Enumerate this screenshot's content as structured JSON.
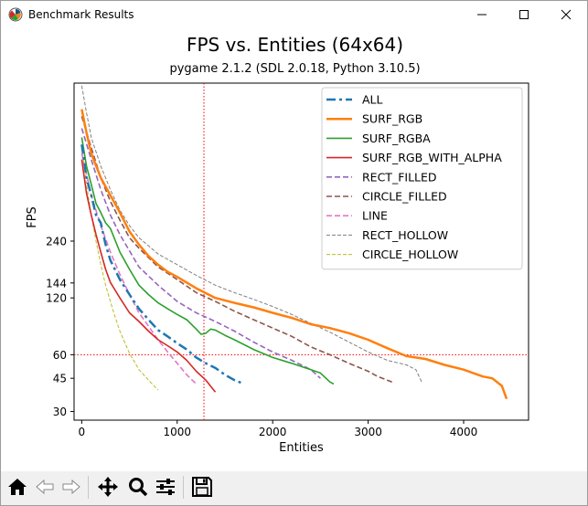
{
  "window": {
    "title": "Benchmark Results",
    "app_icon": "matplotlib-icon",
    "controls": [
      "minimize-icon",
      "maximize-icon",
      "close-icon"
    ]
  },
  "toolbar": {
    "buttons": [
      "home-icon",
      "back-icon",
      "forward-icon",
      "pan-icon",
      "zoom-icon",
      "configure-subplots-icon",
      "save-icon"
    ]
  },
  "chart_data": {
    "type": "line",
    "title": "FPS vs. Entities (64x64)",
    "subtitle": "pygame 2.1.2 (SDL 2.0.18, Python 3.10.5)",
    "xlabel": "Entities",
    "ylabel": "FPS",
    "xlim": [
      -80,
      4680
    ],
    "y_scale": "log",
    "ylim": [
      27,
      1650
    ],
    "xticks": [
      0,
      1000,
      2000,
      3000,
      4000
    ],
    "yticks": [
      30,
      45,
      60,
      120,
      144,
      240
    ],
    "reference_lines": {
      "vertical_x": 1280,
      "horizontal_y": 60,
      "color": "#ff0000",
      "style": "dotted"
    },
    "legend_position": "upper right",
    "grid": false,
    "series": [
      {
        "name": "ALL",
        "color": "#1f77b4",
        "style": "dashdot",
        "width": 2.5,
        "x": [
          0,
          50,
          100,
          150,
          200,
          250,
          300,
          400,
          500,
          600,
          700,
          800,
          900,
          1000,
          1100,
          1200,
          1300,
          1400,
          1500,
          1600,
          1700
        ],
        "y": [
          780,
          520,
          420,
          330,
          300,
          230,
          190,
          150,
          125,
          105,
          92,
          81,
          75,
          69,
          64,
          58,
          54,
          51,
          47,
          44,
          42
        ]
      },
      {
        "name": "SURF_RGB",
        "color": "#ff7f0e",
        "style": "solid",
        "width": 2.5,
        "x": [
          0,
          50,
          100,
          200,
          300,
          400,
          500,
          600,
          700,
          800,
          900,
          1000,
          1200,
          1400,
          1600,
          1800,
          2000,
          2200,
          2400,
          2600,
          2800,
          3000,
          3200,
          3400,
          3600,
          3800,
          4000,
          4200,
          4300,
          4400,
          4450
        ],
        "y": [
          1200,
          900,
          700,
          520,
          420,
          340,
          270,
          230,
          200,
          180,
          165,
          155,
          135,
          120,
          113,
          107,
          100,
          94,
          87,
          83,
          78,
          72,
          65,
          59,
          57,
          53,
          50,
          46,
          45,
          41,
          35
        ]
      },
      {
        "name": "SURF_RGBA",
        "color": "#2ca02c",
        "style": "solid",
        "width": 1.6,
        "x": [
          0,
          50,
          100,
          150,
          200,
          250,
          300,
          400,
          500,
          600,
          700,
          800,
          900,
          1000,
          1100,
          1200,
          1250,
          1300,
          1350,
          1400,
          1500,
          1600,
          1800,
          2000,
          2200,
          2400,
          2500,
          2600,
          2640
        ],
        "y": [
          850,
          600,
          480,
          380,
          340,
          300,
          280,
          210,
          170,
          140,
          125,
          113,
          105,
          98,
          92,
          82,
          77,
          78,
          82,
          81,
          76,
          72,
          64,
          58,
          54,
          50,
          48,
          43,
          42
        ]
      },
      {
        "name": "SURF_RGB_WITH_ALPHA",
        "color": "#d62728",
        "style": "solid",
        "width": 1.6,
        "x": [
          0,
          50,
          100,
          150,
          200,
          250,
          300,
          400,
          500,
          600,
          700,
          800,
          900,
          1000,
          1100,
          1200,
          1300,
          1400
        ],
        "y": [
          650,
          430,
          330,
          260,
          210,
          170,
          145,
          120,
          100,
          90,
          80,
          72,
          67,
          62,
          56,
          49,
          44,
          38
        ]
      },
      {
        "name": "RECT_FILLED",
        "color": "#9467bd",
        "style": "dashed",
        "width": 1.6,
        "x": [
          0,
          100,
          200,
          300,
          400,
          600,
          800,
          1000,
          1200,
          1400,
          1600,
          1800,
          2000,
          2200,
          2400,
          2500
        ],
        "y": [
          950,
          650,
          450,
          330,
          260,
          175,
          140,
          115,
          100,
          90,
          80,
          70,
          62,
          56,
          50,
          45
        ]
      },
      {
        "name": "CIRCLE_FILLED",
        "color": "#8c564b",
        "style": "dashed",
        "width": 1.6,
        "x": [
          0,
          100,
          200,
          300,
          400,
          500,
          600,
          800,
          1000,
          1200,
          1400,
          1600,
          1800,
          2000,
          2200,
          2400,
          2600,
          2800,
          3000,
          3100,
          3200,
          3250
        ],
        "y": [
          1100,
          750,
          520,
          390,
          310,
          250,
          220,
          175,
          150,
          128,
          115,
          102,
          92,
          83,
          75,
          66,
          60,
          54,
          49,
          46,
          44,
          43
        ]
      },
      {
        "name": "LINE",
        "color": "#e377c2",
        "style": "dashed",
        "width": 1.6,
        "x": [
          0,
          100,
          200,
          300,
          400,
          500,
          600,
          700,
          800,
          900,
          1000,
          1100,
          1200
        ],
        "y": [
          700,
          420,
          290,
          210,
          160,
          125,
          100,
          85,
          72,
          62,
          54,
          47,
          42
        ]
      },
      {
        "name": "RECT_HOLLOW",
        "color": "#7f7f7f",
        "style": "dashed",
        "width": 1.0,
        "x": [
          0,
          50,
          100,
          200,
          300,
          400,
          500,
          600,
          800,
          1000,
          1200,
          1400,
          1600,
          1800,
          2000,
          2200,
          2400,
          2600,
          2800,
          3000,
          3200,
          3400,
          3500,
          3560
        ],
        "y": [
          1600,
          1150,
          850,
          600,
          450,
          350,
          290,
          250,
          205,
          180,
          158,
          140,
          128,
          118,
          108,
          98,
          88,
          79,
          70,
          62,
          56,
          53,
          50,
          43
        ]
      },
      {
        "name": "CIRCLE_HOLLOW",
        "color": "#bcbd22",
        "style": "dashed",
        "width": 1.0,
        "x": [
          0,
          50,
          100,
          150,
          200,
          250,
          300,
          350,
          400,
          450,
          500,
          600,
          700,
          800
        ],
        "y": [
          750,
          480,
          330,
          240,
          180,
          140,
          115,
          95,
          80,
          70,
          61,
          50,
          44,
          39
        ]
      }
    ]
  }
}
